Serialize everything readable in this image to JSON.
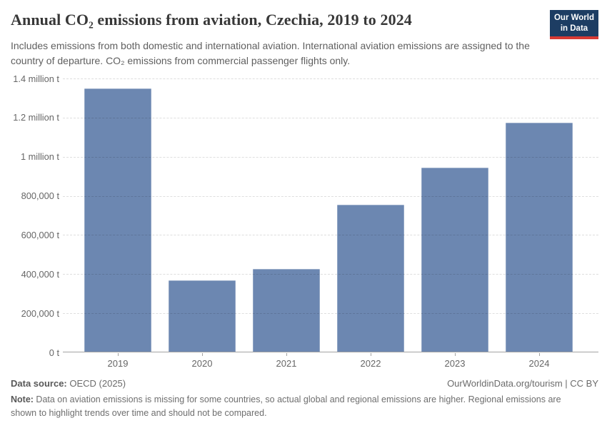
{
  "header": {
    "title": "Annual CO₂ emissions from aviation, Czechia, 2019 to 2024",
    "subtitle": "Includes emissions from both domestic and international aviation. International aviation emissions are assigned to the country of departure. CO₂ emissions from commercial passenger flights only.",
    "logo": {
      "line1": "Our World",
      "line2": "in Data",
      "bg_color": "#1d3d63",
      "accent_color": "#d73a34"
    }
  },
  "chart_data": {
    "type": "bar",
    "title": "Annual CO₂ emissions from aviation, Czechia, 2019 to 2024",
    "categories": [
      "2019",
      "2020",
      "2021",
      "2022",
      "2023",
      "2024"
    ],
    "values": [
      1350000,
      370000,
      425000,
      755000,
      945000,
      1175000
    ],
    "unit": "t",
    "xlabel": "",
    "ylabel": "",
    "ylim": [
      0,
      1400000
    ],
    "ytick_interval": 200000,
    "ytick_labels": [
      "0 t",
      "200,000 t",
      "400,000 t",
      "600,000 t",
      "800,000 t",
      "1 million t",
      "1.2 million t",
      "1.4 million t"
    ],
    "bar_color": "#6c87b1",
    "grid": "horizontal-dashed",
    "legend_position": "none"
  },
  "footer": {
    "source_label": "Data source:",
    "source_value": " OECD (2025)",
    "license": "OurWorldinData.org/tourism | CC BY",
    "note_label": "Note:",
    "note_value": " Data on aviation emissions is missing for some countries, so actual global and regional emissions are higher. Regional emissions are shown to highlight trends over time and should not be compared."
  }
}
